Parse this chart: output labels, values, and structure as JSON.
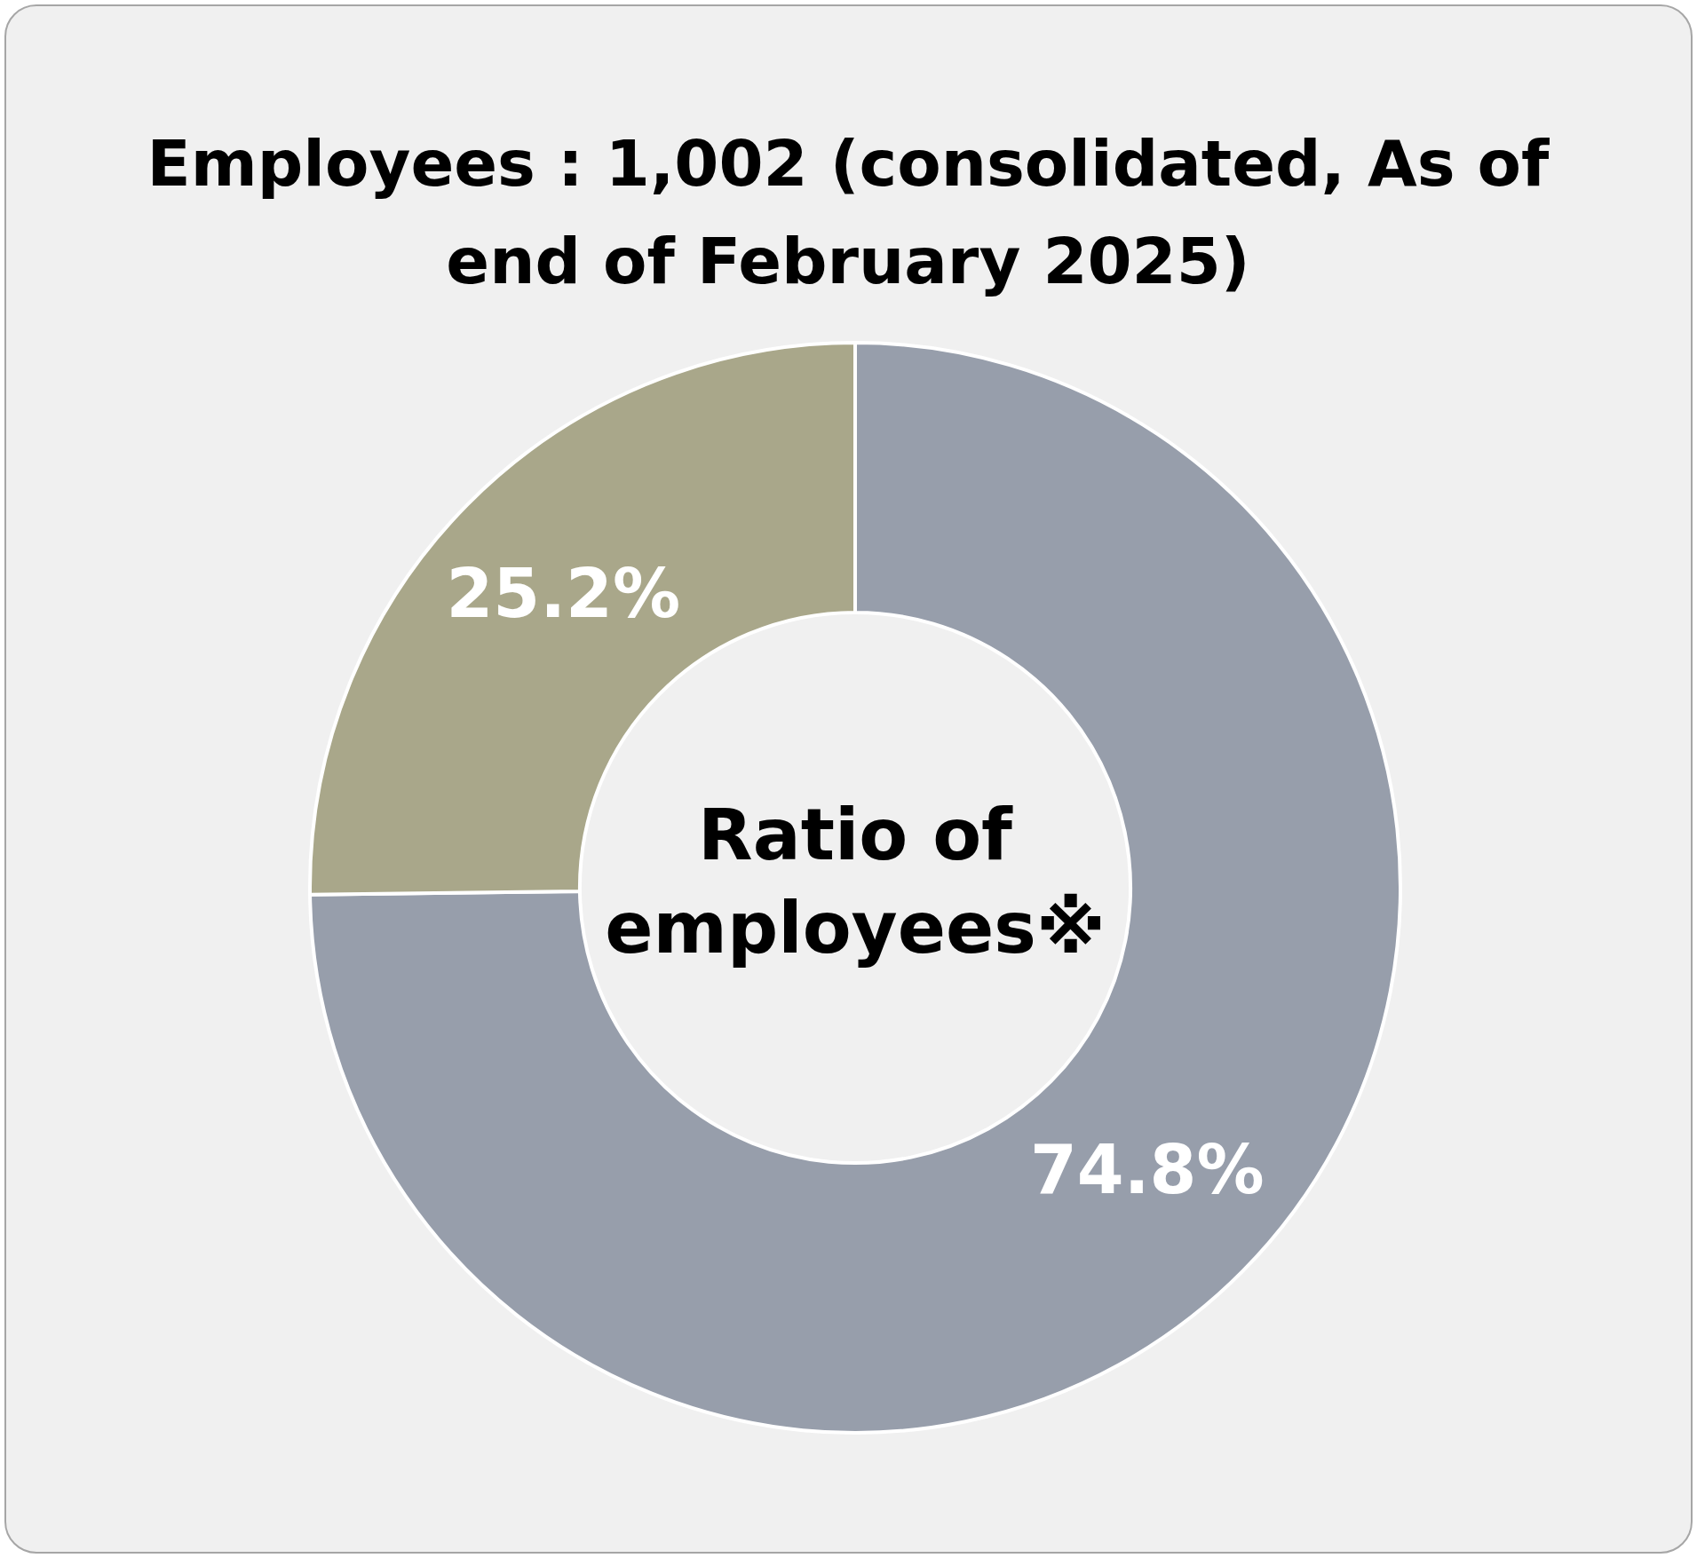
{
  "chart_data": {
    "type": "donut",
    "title": "Employees : 1,002 (consolidated, As of end of February 2025)",
    "categories": [
      null,
      null
    ],
    "values": [
      74.8,
      25.2
    ],
    "colors": [
      "#979eab",
      "#a9a78a"
    ],
    "value_labels": [
      "74.8%",
      "25.2%"
    ],
    "annotations": [
      "Ratio of employees※"
    ],
    "legend": false
  }
}
